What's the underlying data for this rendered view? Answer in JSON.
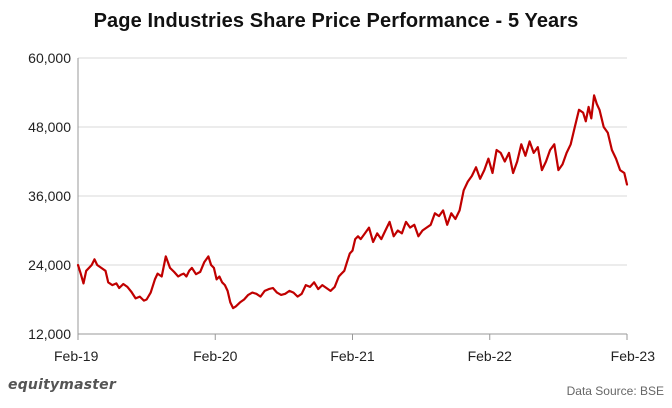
{
  "chart_data": {
    "type": "line",
    "title": "Page Industries Share Price Performance - 5 Years",
    "xlabel": "",
    "ylabel": "",
    "ylim": [
      12000,
      60000
    ],
    "xlim": [
      0,
      4
    ],
    "y_ticks": [
      12000,
      24000,
      36000,
      48000,
      60000
    ],
    "y_tick_labels": [
      "12,000",
      "24,000",
      "36,000",
      "48,000",
      "60,000"
    ],
    "x_ticks": [
      0,
      1,
      2,
      3,
      4
    ],
    "x_tick_labels": [
      "Feb-19",
      "Feb-20",
      "Feb-21",
      "Feb-22",
      "Feb-23"
    ],
    "grid": "horizontal",
    "series": [
      {
        "name": "Page Industries",
        "color": "#c00000",
        "x": [
          0.0,
          0.02,
          0.04,
          0.06,
          0.08,
          0.1,
          0.12,
          0.14,
          0.17,
          0.2,
          0.22,
          0.25,
          0.28,
          0.3,
          0.33,
          0.36,
          0.39,
          0.42,
          0.45,
          0.48,
          0.5,
          0.53,
          0.56,
          0.58,
          0.61,
          0.64,
          0.67,
          0.7,
          0.73,
          0.75,
          0.77,
          0.79,
          0.81,
          0.83,
          0.86,
          0.89,
          0.92,
          0.95,
          0.97,
          0.99,
          1.01,
          1.03,
          1.05,
          1.07,
          1.09,
          1.11,
          1.13,
          1.15,
          1.18,
          1.21,
          1.24,
          1.27,
          1.3,
          1.33,
          1.36,
          1.39,
          1.42,
          1.45,
          1.48,
          1.51,
          1.54,
          1.57,
          1.6,
          1.63,
          1.66,
          1.69,
          1.72,
          1.75,
          1.78,
          1.81,
          1.84,
          1.87,
          1.9,
          1.92,
          1.94,
          1.96,
          1.98,
          2.0,
          2.02,
          2.04,
          2.06,
          2.09,
          2.12,
          2.15,
          2.18,
          2.21,
          2.24,
          2.27,
          2.3,
          2.33,
          2.36,
          2.39,
          2.42,
          2.45,
          2.48,
          2.51,
          2.54,
          2.57,
          2.6,
          2.63,
          2.66,
          2.69,
          2.72,
          2.75,
          2.78,
          2.81,
          2.84,
          2.87,
          2.9,
          2.93,
          2.96,
          2.99,
          3.02,
          3.05,
          3.08,
          3.11,
          3.14,
          3.17,
          3.2,
          3.23,
          3.26,
          3.29,
          3.32,
          3.35,
          3.38,
          3.41,
          3.44,
          3.47,
          3.5,
          3.53,
          3.56,
          3.59,
          3.62,
          3.65,
          3.68,
          3.7,
          3.72,
          3.74,
          3.76,
          3.78,
          3.8,
          3.83,
          3.86,
          3.89,
          3.92,
          3.95,
          3.98,
          4.0
        ],
        "values": [
          24000,
          22500,
          20800,
          23000,
          23500,
          24000,
          25000,
          24000,
          23500,
          23000,
          21000,
          20500,
          20800,
          20000,
          20700,
          20200,
          19300,
          18200,
          18500,
          17800,
          18000,
          19200,
          21500,
          22500,
          22000,
          25500,
          23500,
          22800,
          22000,
          22300,
          22500,
          22000,
          23000,
          23500,
          22400,
          22800,
          24500,
          25500,
          24000,
          23500,
          21500,
          22000,
          21000,
          20500,
          19500,
          17500,
          16500,
          16800,
          17500,
          18000,
          18800,
          19200,
          19000,
          18500,
          19500,
          19800,
          20000,
          19200,
          18800,
          19000,
          19500,
          19200,
          18500,
          19000,
          20500,
          20200,
          21000,
          19800,
          20500,
          20000,
          19500,
          20200,
          22000,
          22500,
          23000,
          24500,
          26000,
          26500,
          28500,
          29000,
          28500,
          29500,
          30500,
          28000,
          29500,
          28500,
          30000,
          31500,
          29000,
          30000,
          29500,
          31500,
          30500,
          31000,
          29000,
          30000,
          30500,
          31000,
          33000,
          32500,
          33500,
          31000,
          33000,
          32000,
          33500,
          37000,
          38500,
          39500,
          41000,
          39000,
          40500,
          42500,
          40000,
          44000,
          43500,
          42000,
          43500,
          40000,
          42000,
          45000,
          43000,
          45500,
          43500,
          44500,
          40500,
          42000,
          44000,
          45000,
          40500,
          41500,
          43500,
          45000,
          48000,
          51000,
          50500,
          49000,
          51500,
          49500,
          53500,
          52000,
          51000,
          48000,
          47000,
          44000,
          42500,
          40500,
          40000,
          38000
        ]
      }
    ]
  },
  "footer": {
    "brand": "equitymaster",
    "source": "Data Source: BSE"
  }
}
